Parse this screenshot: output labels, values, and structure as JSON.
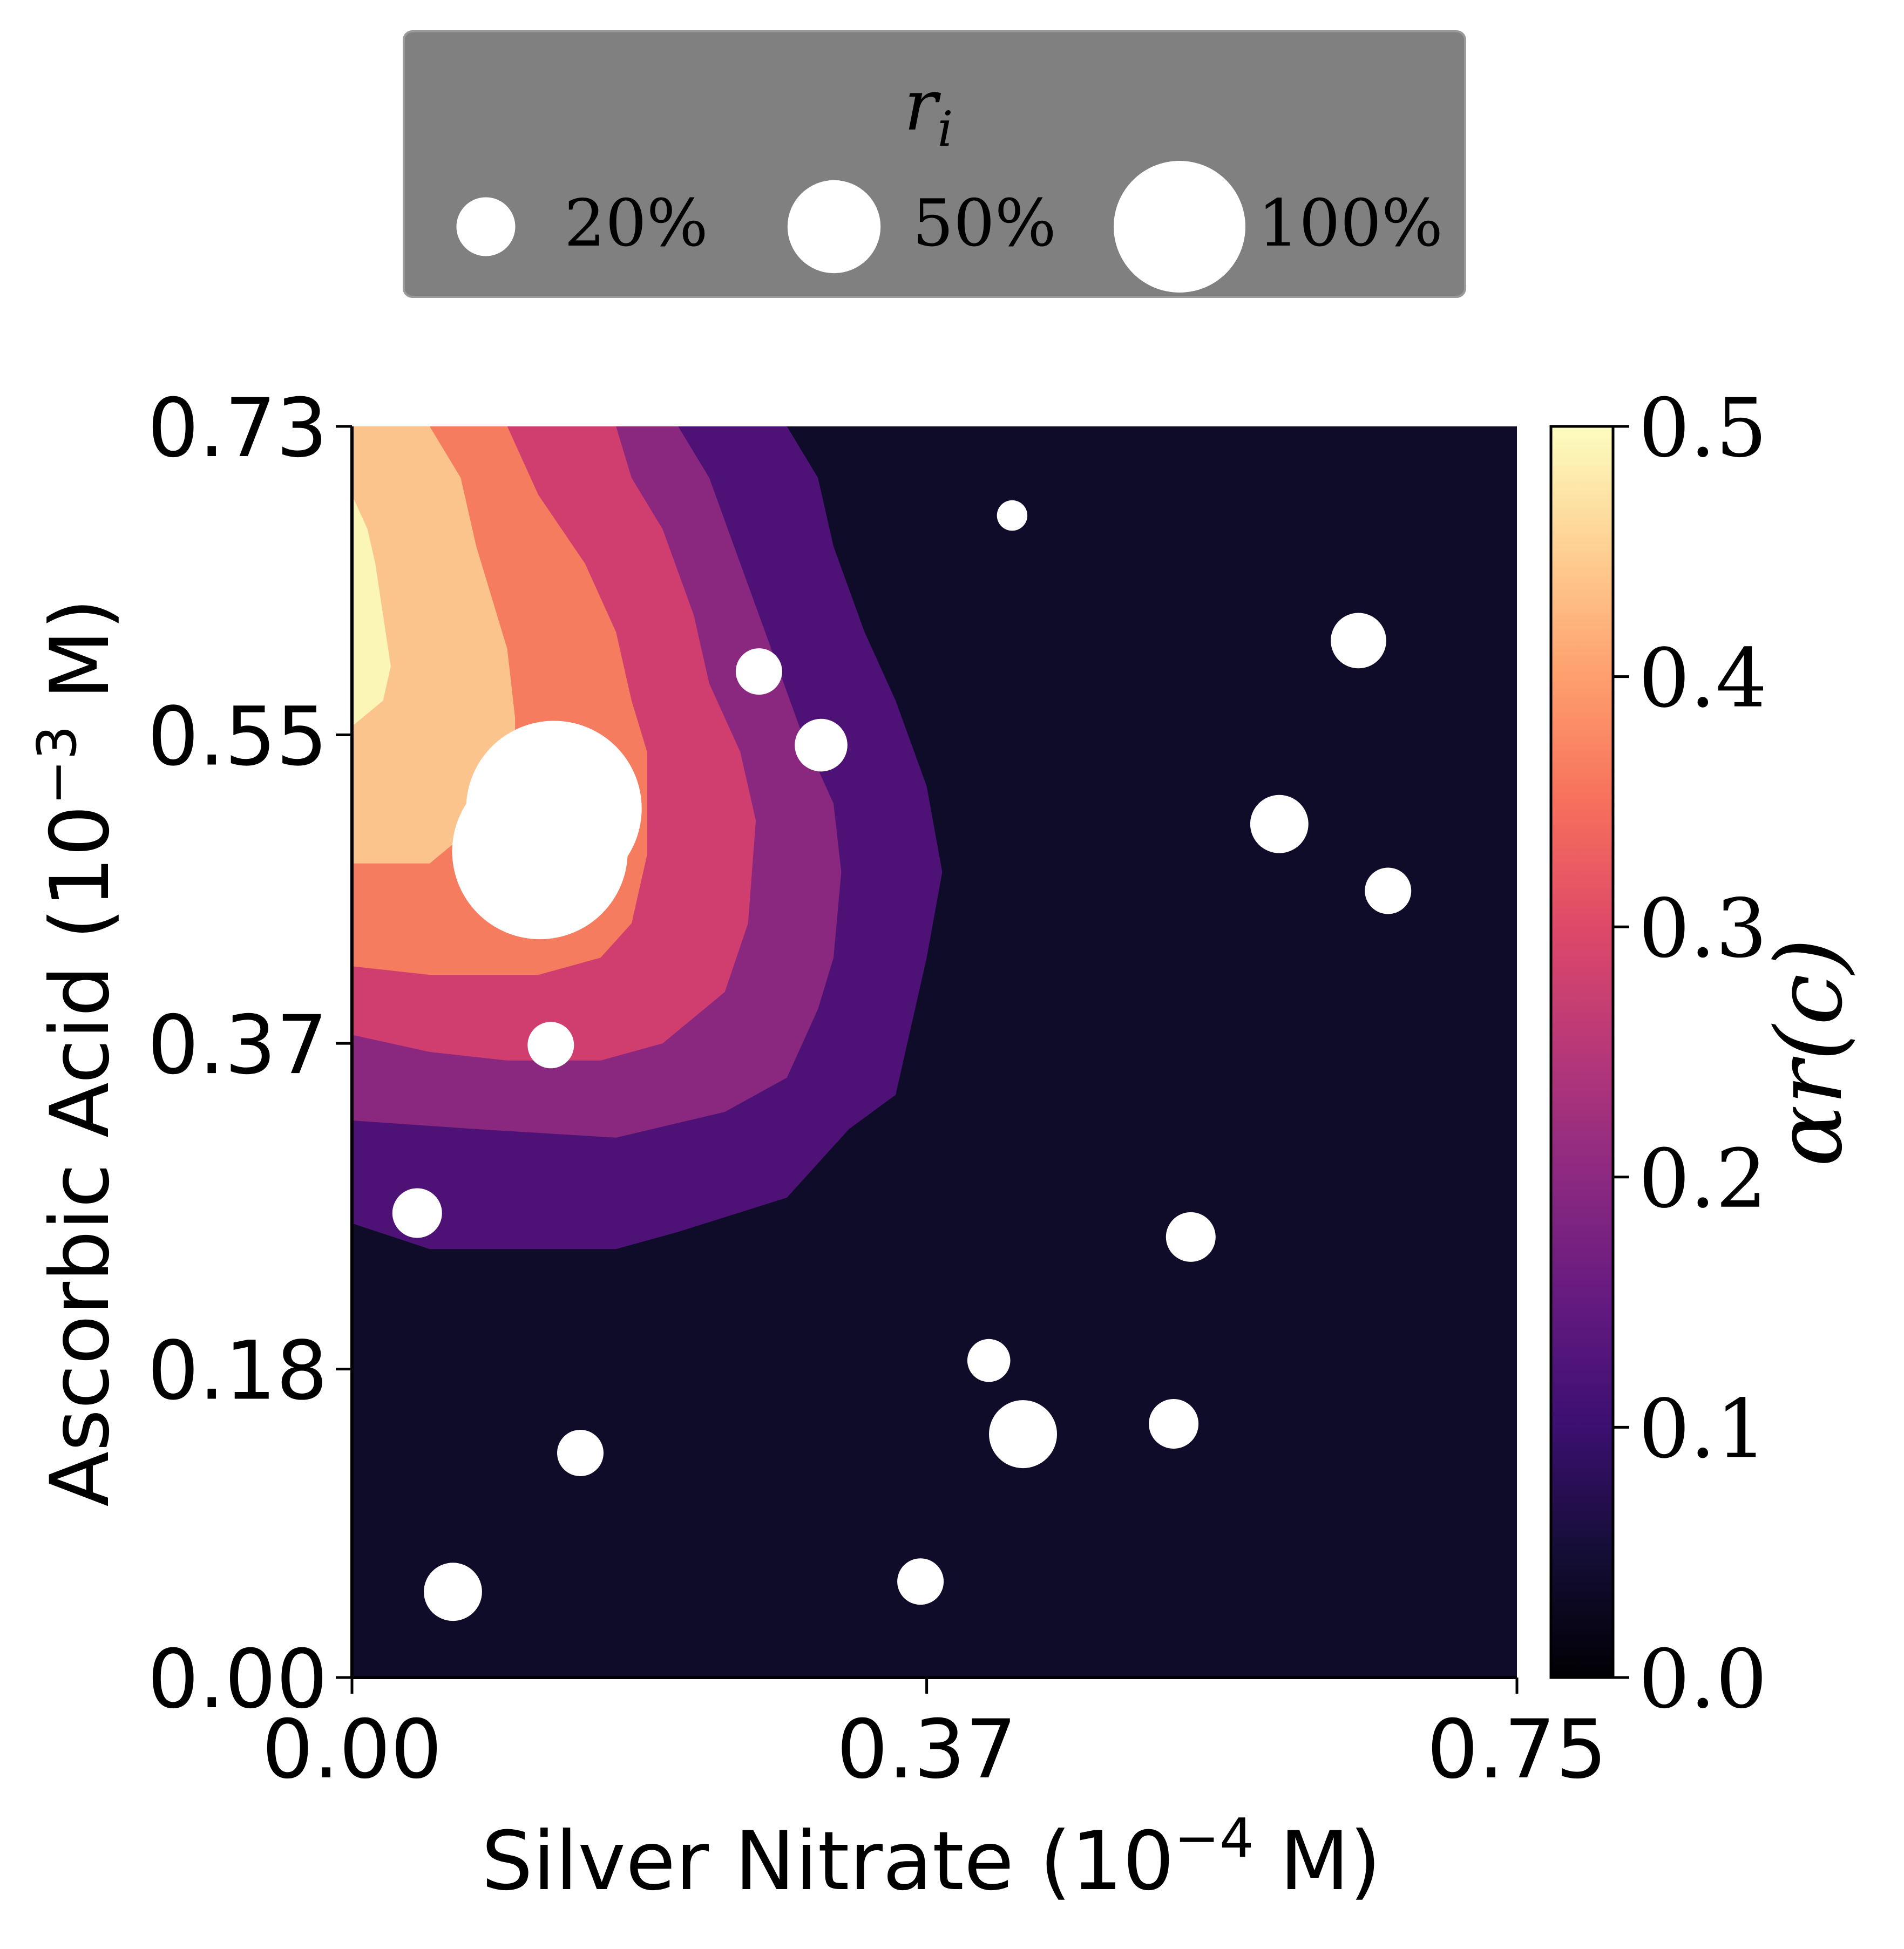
{
  "chart_data": {
    "type": "contour-scatter",
    "xlabel": "Silver Nitrate (10^-4 M)",
    "xlabel_parts": {
      "main": "Silver Nitrate (10",
      "exp": "−4",
      "tail": " M)"
    },
    "ylabel": "Ascorbic Acid (10^-3 M)",
    "ylabel_parts": {
      "main": "Ascorbic Acid (10",
      "exp": "−3",
      "tail": " M)"
    },
    "xlim": [
      0,
      0.75
    ],
    "ylim": [
      0,
      0.73
    ],
    "x_ticks": [
      {
        "value": 0.0,
        "label": "0.00"
      },
      {
        "value": 0.37,
        "label": "0.37"
      },
      {
        "value": 0.75,
        "label": "0.75"
      }
    ],
    "y_ticks": [
      {
        "value": 0.0,
        "label": "0.00"
      },
      {
        "value": 0.18,
        "label": "0.18"
      },
      {
        "value": 0.37,
        "label": "0.37"
      },
      {
        "value": 0.55,
        "label": "0.55"
      },
      {
        "value": 0.73,
        "label": "0.73"
      }
    ],
    "colorbar": {
      "label": "αr(c)",
      "colormap": "magma",
      "range": [
        0.0,
        0.5
      ],
      "ticks": [
        "0.0",
        "0.1",
        "0.2",
        "0.3",
        "0.4",
        "0.5"
      ]
    },
    "legend": {
      "title": "r_i",
      "title_main": "r",
      "title_sub": "i",
      "placement": "top-center",
      "background": "#808080",
      "entries": [
        {
          "label": "20%",
          "r_percent": 20
        },
        {
          "label": "50%",
          "r_percent": 50
        },
        {
          "label": "100%",
          "r_percent": 100
        }
      ]
    },
    "contour_levels": [
      {
        "range": [
          0.0,
          0.05
        ],
        "color": "#0f0c2a"
      },
      {
        "range": [
          0.05,
          0.1
        ],
        "color": "#4e1277"
      },
      {
        "range": [
          0.1,
          0.2
        ],
        "color": "#8a2880"
      },
      {
        "range": [
          0.2,
          0.3
        ],
        "color": "#cf3e6f"
      },
      {
        "range": [
          0.3,
          0.4
        ],
        "color": "#f67c5f"
      },
      {
        "range": [
          0.4,
          0.45
        ],
        "color": "#fcc48d"
      },
      {
        "range": [
          0.45,
          0.5
        ],
        "color": "#fcf6b6"
      }
    ],
    "contours": [
      {
        "level": "0.05-0.1",
        "points": [
          [
            0,
            0.73
          ],
          [
            0.28,
            0.73
          ],
          [
            0.3,
            0.7
          ],
          [
            0.31,
            0.66
          ],
          [
            0.33,
            0.61
          ],
          [
            0.35,
            0.57
          ],
          [
            0.37,
            0.52
          ],
          [
            0.38,
            0.47
          ],
          [
            0.37,
            0.42
          ],
          [
            0.36,
            0.38
          ],
          [
            0.35,
            0.34
          ],
          [
            0.32,
            0.32
          ],
          [
            0.3,
            0.3
          ],
          [
            0.28,
            0.28
          ],
          [
            0.21,
            0.26
          ],
          [
            0.17,
            0.25
          ],
          [
            0.05,
            0.25
          ],
          [
            0,
            0.265
          ]
        ]
      },
      {
        "level": "0.1-0.2",
        "points": [
          [
            0,
            0.73
          ],
          [
            0.21,
            0.73
          ],
          [
            0.23,
            0.7
          ],
          [
            0.25,
            0.65
          ],
          [
            0.27,
            0.6
          ],
          [
            0.29,
            0.55
          ],
          [
            0.31,
            0.51
          ],
          [
            0.315,
            0.47
          ],
          [
            0.31,
            0.42
          ],
          [
            0.3,
            0.39
          ],
          [
            0.28,
            0.35
          ],
          [
            0.24,
            0.33
          ],
          [
            0.17,
            0.315
          ],
          [
            0.08,
            0.32
          ],
          [
            0,
            0.325
          ]
        ]
      },
      {
        "level": "0.2-0.3",
        "points": [
          [
            0,
            0.73
          ],
          [
            0.17,
            0.73
          ],
          [
            0.18,
            0.7
          ],
          [
            0.2,
            0.67
          ],
          [
            0.22,
            0.62
          ],
          [
            0.23,
            0.58
          ],
          [
            0.25,
            0.54
          ],
          [
            0.26,
            0.5
          ],
          [
            0.255,
            0.44
          ],
          [
            0.24,
            0.4
          ],
          [
            0.2,
            0.37
          ],
          [
            0.16,
            0.36
          ],
          [
            0.1,
            0.36
          ],
          [
            0.05,
            0.365
          ],
          [
            0,
            0.375
          ]
        ]
      },
      {
        "level": "0.3-0.4",
        "points": [
          [
            0,
            0.73
          ],
          [
            0.1,
            0.73
          ],
          [
            0.12,
            0.69
          ],
          [
            0.15,
            0.65
          ],
          [
            0.17,
            0.61
          ],
          [
            0.18,
            0.57
          ],
          [
            0.19,
            0.54
          ],
          [
            0.19,
            0.48
          ],
          [
            0.18,
            0.44
          ],
          [
            0.16,
            0.42
          ],
          [
            0.12,
            0.41
          ],
          [
            0.05,
            0.41
          ],
          [
            0,
            0.415
          ]
        ]
      },
      {
        "level": "0.4-0.45",
        "points": [
          [
            0,
            0.73
          ],
          [
            0.05,
            0.73
          ],
          [
            0.07,
            0.7
          ],
          [
            0.08,
            0.66
          ],
          [
            0.09,
            0.63
          ],
          [
            0.1,
            0.6
          ],
          [
            0.105,
            0.56
          ],
          [
            0.105,
            0.53
          ],
          [
            0.09,
            0.51
          ],
          [
            0.07,
            0.49
          ],
          [
            0.05,
            0.475
          ],
          [
            0,
            0.475
          ]
        ]
      },
      {
        "level": "0.45-0.5",
        "points": [
          [
            0,
            0.69
          ],
          [
            0.01,
            0.67
          ],
          [
            0.015,
            0.65
          ],
          [
            0.02,
            0.62
          ],
          [
            0.025,
            0.59
          ],
          [
            0.02,
            0.57
          ],
          [
            0,
            0.555
          ]
        ]
      }
    ],
    "scatter_points": [
      {
        "x": 0.425,
        "y": 0.678,
        "r_percent": 3
      },
      {
        "x": 0.648,
        "y": 0.605,
        "r_percent": 10
      },
      {
        "x": 0.262,
        "y": 0.587,
        "r_percent": 7
      },
      {
        "x": 0.302,
        "y": 0.544,
        "r_percent": 9
      },
      {
        "x": 0.13,
        "y": 0.507,
        "r_percent": 100
      },
      {
        "x": 0.121,
        "y": 0.482,
        "r_percent": 100
      },
      {
        "x": 0.597,
        "y": 0.498,
        "r_percent": 11
      },
      {
        "x": 0.667,
        "y": 0.459,
        "r_percent": 7
      },
      {
        "x": 0.128,
        "y": 0.369,
        "r_percent": 7
      },
      {
        "x": 0.042,
        "y": 0.271,
        "r_percent": 8
      },
      {
        "x": 0.54,
        "y": 0.257,
        "r_percent": 8
      },
      {
        "x": 0.41,
        "y": 0.185,
        "r_percent": 6
      },
      {
        "x": 0.529,
        "y": 0.148,
        "r_percent": 8
      },
      {
        "x": 0.432,
        "y": 0.142,
        "r_percent": 15
      },
      {
        "x": 0.147,
        "y": 0.131,
        "r_percent": 7
      },
      {
        "x": 0.366,
        "y": 0.056,
        "r_percent": 7
      },
      {
        "x": 0.065,
        "y": 0.05,
        "r_percent": 11
      }
    ],
    "grid": false
  }
}
